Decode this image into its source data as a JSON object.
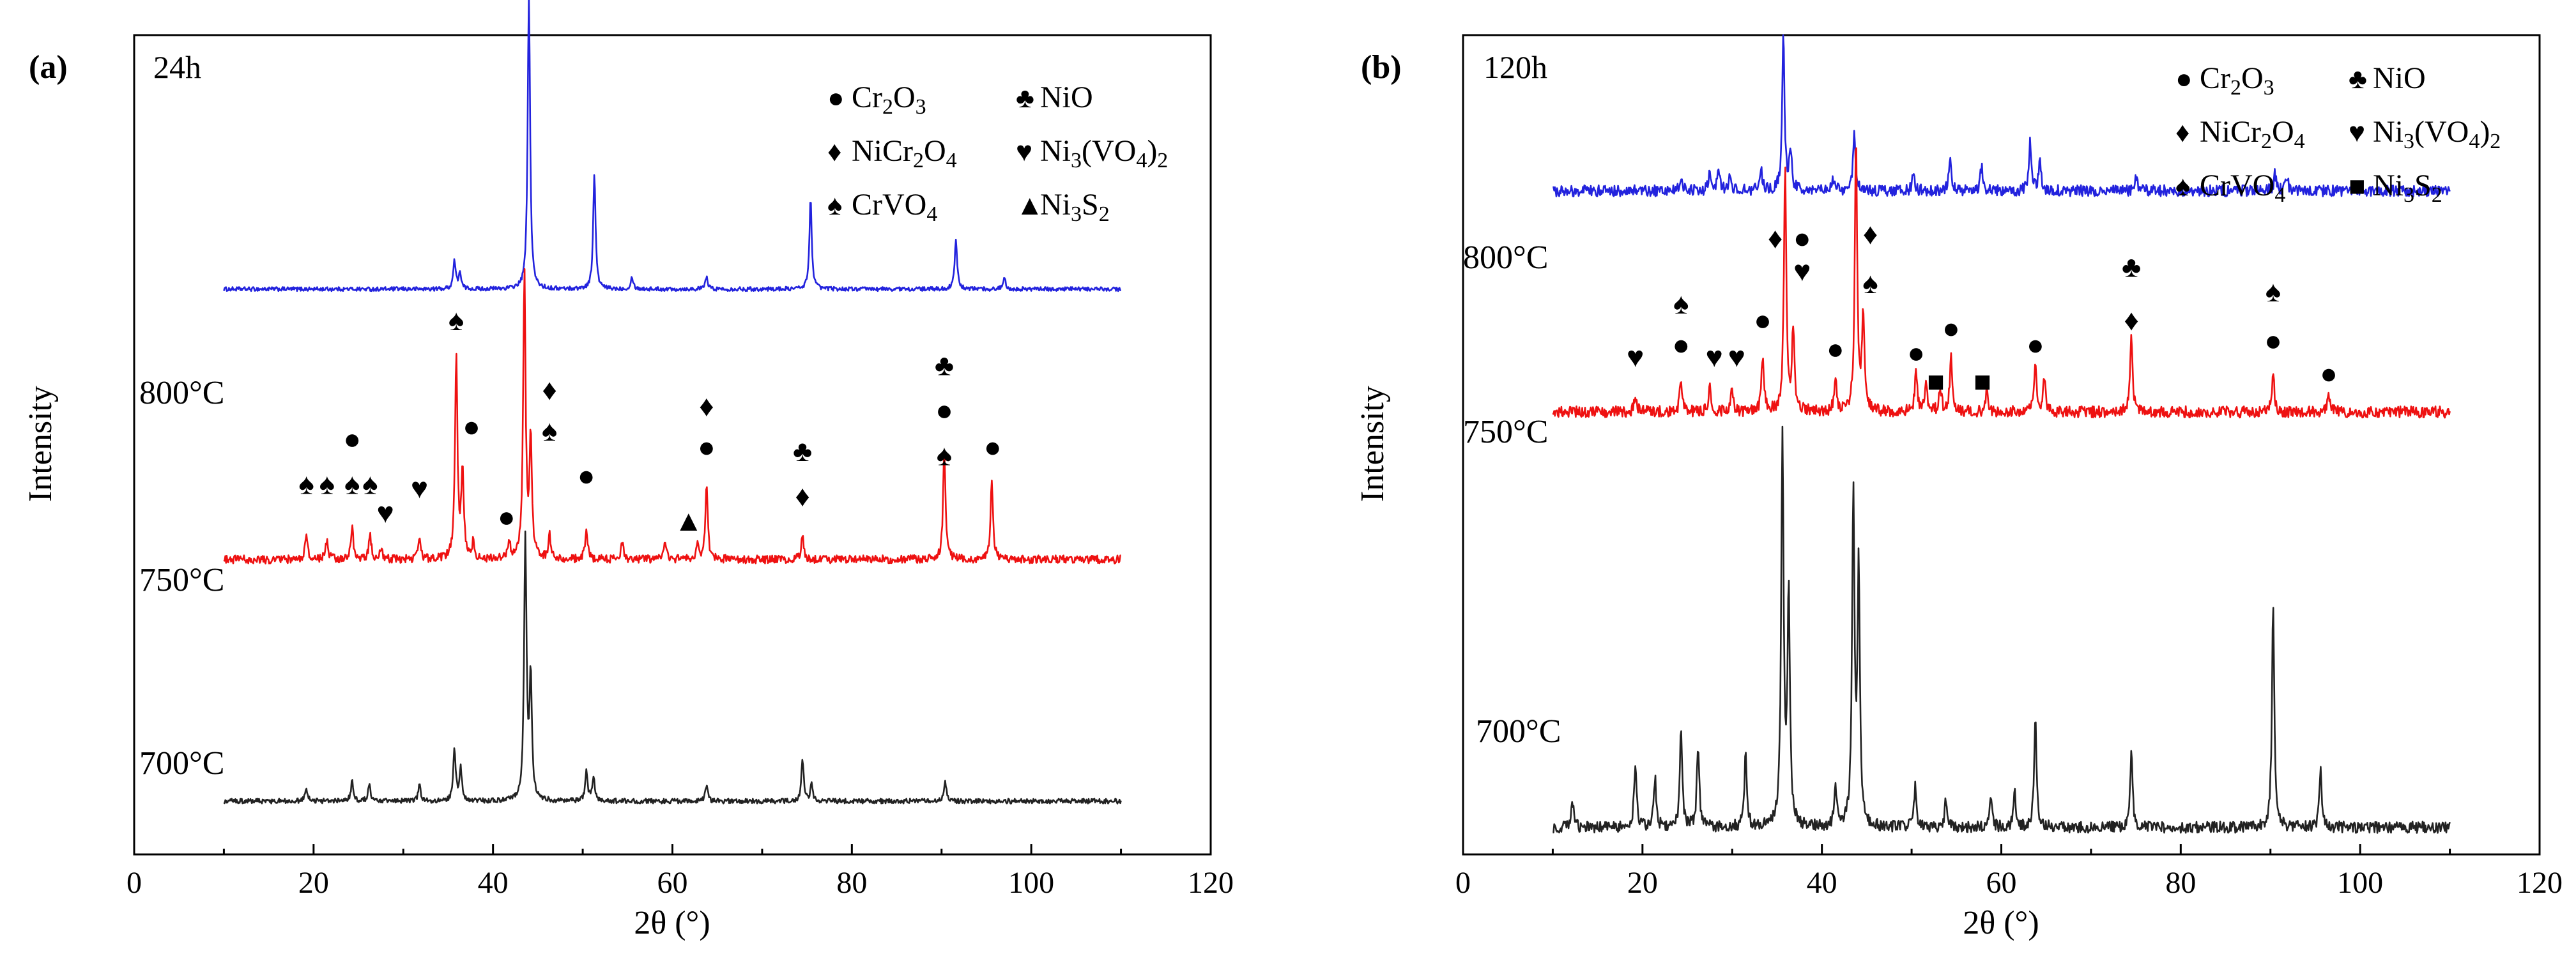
{
  "chart_data": [
    {
      "type": "line",
      "panel_label": "(a)",
      "title": "24h",
      "xlabel": "2θ (°)",
      "ylabel": "Intensity",
      "xlim": [
        0,
        120
      ],
      "xticks": [
        0,
        20,
        40,
        60,
        80,
        100,
        120
      ],
      "ylim": [
        0,
        100
      ],
      "legend_position": "top-right",
      "legend": [
        {
          "symbol": "●",
          "parts": [
            [
              "Cr",
              ""
            ],
            [
              "2",
              "sub"
            ],
            [
              "O",
              ""
            ],
            [
              "3",
              "sub"
            ]
          ]
        },
        {
          "symbol": "♣",
          "parts": [
            [
              "NiO",
              ""
            ]
          ]
        },
        {
          "symbol": "♦",
          "parts": [
            [
              "NiCr",
              ""
            ],
            [
              "2",
              "sub"
            ],
            [
              "O",
              ""
            ],
            [
              "4",
              "sub"
            ]
          ]
        },
        {
          "symbol": "♥",
          "parts": [
            [
              "Ni",
              ""
            ],
            [
              "3",
              "sub"
            ],
            [
              "(VO",
              ""
            ],
            [
              "4",
              "sub"
            ],
            [
              ")",
              ""
            ],
            [
              "2",
              "sub"
            ]
          ]
        },
        {
          "symbol": "♠",
          "parts": [
            [
              "CrVO",
              ""
            ],
            [
              "4",
              "sub"
            ]
          ]
        },
        {
          "symbol": "▲",
          "parts": [
            [
              "Ni",
              ""
            ],
            [
              "3",
              "sub"
            ],
            [
              "S",
              ""
            ],
            [
              "2",
              "sub"
            ]
          ]
        }
      ],
      "series": [
        {
          "name": "800°C",
          "color": "#2222dd",
          "baseline": 69,
          "noise": 0.25,
          "peaks": [
            [
              35.7,
              3.5
            ],
            [
              36.3,
              2
            ],
            [
              44,
              36
            ],
            [
              51.3,
              14
            ],
            [
              55.5,
              1.5
            ],
            [
              63.8,
              1.5
            ],
            [
              75.4,
              11
            ],
            [
              91.6,
              6
            ],
            [
              97,
              1.5
            ]
          ]
        },
        {
          "name": "750°C",
          "color": "#ee1111",
          "baseline": 36,
          "noise": 0.5,
          "peaks": [
            [
              19.2,
              3
            ],
            [
              21.5,
              2.5
            ],
            [
              24.3,
              4
            ],
            [
              26.3,
              3
            ],
            [
              27.5,
              1.5
            ],
            [
              31.8,
              2.5
            ],
            [
              35.9,
              25
            ],
            [
              36.6,
              11
            ],
            [
              37.8,
              2
            ],
            [
              41.8,
              2
            ],
            [
              43.5,
              35
            ],
            [
              44.2,
              15
            ],
            [
              46.3,
              3
            ],
            [
              50.4,
              4
            ],
            [
              54.4,
              2
            ],
            [
              59.2,
              2
            ],
            [
              62.8,
              2
            ],
            [
              63.8,
              9
            ],
            [
              74.5,
              3
            ],
            [
              90.3,
              13
            ],
            [
              95.6,
              10
            ]
          ]
        },
        {
          "name": "700°C",
          "color": "#222222",
          "baseline": 6.5,
          "noise": 0.3,
          "peaks": [
            [
              19.2,
              1.5
            ],
            [
              24.3,
              2.5
            ],
            [
              26.2,
              2
            ],
            [
              31.8,
              2
            ],
            [
              35.7,
              6.5
            ],
            [
              36.4,
              4
            ],
            [
              43.6,
              32
            ],
            [
              44.2,
              15
            ],
            [
              50.4,
              3.5
            ],
            [
              51.2,
              3
            ],
            [
              63.8,
              2
            ],
            [
              74.5,
              5
            ],
            [
              75.5,
              2
            ],
            [
              90.4,
              2.5
            ]
          ]
        }
      ],
      "phase_marks": [
        {
          "x": 19.2,
          "y": 44,
          "s": "♠"
        },
        {
          "x": 21.5,
          "y": 44,
          "s": "♠"
        },
        {
          "x": 24.3,
          "y": 44,
          "s": "♠"
        },
        {
          "x": 26.3,
          "y": 44,
          "s": "♠"
        },
        {
          "x": 24.3,
          "y": 49.5,
          "s": "●"
        },
        {
          "x": 28,
          "y": 40.5,
          "s": "♥"
        },
        {
          "x": 31.8,
          "y": 43.5,
          "s": "♥"
        },
        {
          "x": 35.9,
          "y": 64,
          "s": "♠"
        },
        {
          "x": 37.6,
          "y": 51,
          "s": "●"
        },
        {
          "x": 41.5,
          "y": 40,
          "s": "●"
        },
        {
          "x": 46.3,
          "y": 50.5,
          "s": "♠"
        },
        {
          "x": 46.3,
          "y": 55.5,
          "s": "♦"
        },
        {
          "x": 50.4,
          "y": 45,
          "s": "●"
        },
        {
          "x": 61.8,
          "y": 39.5,
          "s": "▲"
        },
        {
          "x": 63.8,
          "y": 48.5,
          "s": "●"
        },
        {
          "x": 63.8,
          "y": 53.5,
          "s": "♦"
        },
        {
          "x": 74.5,
          "y": 42.5,
          "s": "♦"
        },
        {
          "x": 74.5,
          "y": 48,
          "s": "♣"
        },
        {
          "x": 90.3,
          "y": 47.5,
          "s": "♠"
        },
        {
          "x": 90.3,
          "y": 53,
          "s": "●"
        },
        {
          "x": 90.3,
          "y": 58.5,
          "s": "♣"
        },
        {
          "x": 95.7,
          "y": 48.5,
          "s": "●"
        }
      ]
    },
    {
      "type": "line",
      "panel_label": "(b)",
      "title": "120h",
      "xlabel": "2θ (°)",
      "ylabel": "Intensity",
      "xlim": [
        0,
        120
      ],
      "xticks": [
        0,
        20,
        40,
        60,
        80,
        100,
        120
      ],
      "ylim": [
        0,
        100
      ],
      "legend_position": "top-right",
      "legend": [
        {
          "symbol": "●",
          "parts": [
            [
              "Cr",
              ""
            ],
            [
              "2",
              "sub"
            ],
            [
              "O",
              ""
            ],
            [
              "3",
              "sub"
            ]
          ]
        },
        {
          "symbol": "♣",
          "parts": [
            [
              "NiO",
              ""
            ]
          ]
        },
        {
          "symbol": "♦",
          "parts": [
            [
              "NiCr",
              ""
            ],
            [
              "2",
              "sub"
            ],
            [
              "O",
              ""
            ],
            [
              "4",
              "sub"
            ]
          ]
        },
        {
          "symbol": "♥",
          "parts": [
            [
              "Ni",
              ""
            ],
            [
              "3",
              "sub"
            ],
            [
              "(VO",
              ""
            ],
            [
              "4",
              "sub"
            ],
            [
              ")",
              ""
            ],
            [
              "2",
              "sub"
            ]
          ]
        },
        {
          "symbol": "♠",
          "parts": [
            [
              "CrVO",
              ""
            ],
            [
              "4",
              "sub"
            ]
          ]
        },
        {
          "symbol": "■",
          "parts": [
            [
              "Ni",
              ""
            ],
            [
              "3",
              "sub"
            ],
            [
              "S",
              ""
            ],
            [
              "2",
              "sub"
            ]
          ]
        }
      ],
      "series": [
        {
          "name": "800°C",
          "color": "#2222dd",
          "baseline": 81,
          "noise": 0.7,
          "peaks": [
            [
              24.3,
              1.5
            ],
            [
              27.5,
              2
            ],
            [
              28.5,
              2.5
            ],
            [
              29.8,
              2
            ],
            [
              33.2,
              3
            ],
            [
              35.7,
              19
            ],
            [
              36.5,
              5
            ],
            [
              41.3,
              1.5
            ],
            [
              43.6,
              7
            ],
            [
              50.2,
              2
            ],
            [
              54.3,
              4
            ],
            [
              57.8,
              3
            ],
            [
              63.2,
              6
            ],
            [
              64.3,
              4
            ],
            [
              75,
              2
            ],
            [
              90.5,
              2
            ],
            [
              91.8,
              2
            ]
          ]
        },
        {
          "name": "750°C",
          "color": "#ee1111",
          "baseline": 54,
          "noise": 0.7,
          "peaks": [
            [
              19.2,
              2
            ],
            [
              24.3,
              4
            ],
            [
              27.5,
              3
            ],
            [
              30,
              3
            ],
            [
              33.4,
              7
            ],
            [
              35.9,
              30
            ],
            [
              36.8,
              10
            ],
            [
              41.5,
              4
            ],
            [
              43.8,
              33
            ],
            [
              44.6,
              12
            ],
            [
              50.5,
              5
            ],
            [
              51.6,
              4
            ],
            [
              53.2,
              3
            ],
            [
              54.4,
              7
            ],
            [
              58.4,
              2.5
            ],
            [
              63.8,
              6
            ],
            [
              64.8,
              4
            ],
            [
              74.5,
              9
            ],
            [
              90.3,
              5
            ],
            [
              96.5,
              2
            ]
          ]
        },
        {
          "name": "700°C",
          "color": "#222222",
          "baseline": 3.3,
          "noise": 0.7,
          "peaks": [
            [
              12.2,
              3
            ],
            [
              19.2,
              8
            ],
            [
              21.4,
              6
            ],
            [
              24.3,
              12
            ],
            [
              26.2,
              10
            ],
            [
              31.5,
              9
            ],
            [
              35.6,
              48
            ],
            [
              36.3,
              28
            ],
            [
              41.5,
              5
            ],
            [
              43.5,
              40
            ],
            [
              44.1,
              31
            ],
            [
              50.4,
              5
            ],
            [
              53.8,
              3
            ],
            [
              58.8,
              4
            ],
            [
              61.5,
              4
            ],
            [
              63.8,
              13
            ],
            [
              74.5,
              9
            ],
            [
              90.3,
              27
            ],
            [
              95.6,
              7
            ]
          ]
        }
      ],
      "phase_marks": [
        {
          "x": 19.2,
          "y": 59.5,
          "s": "♥"
        },
        {
          "x": 24.3,
          "y": 61,
          "s": "●"
        },
        {
          "x": 24.3,
          "y": 66,
          "s": "♠"
        },
        {
          "x": 28,
          "y": 59.5,
          "s": "♥"
        },
        {
          "x": 30.5,
          "y": 59.5,
          "s": "♥"
        },
        {
          "x": 33.4,
          "y": 64,
          "s": "●"
        },
        {
          "x": 34.8,
          "y": 74,
          "s": "♦"
        },
        {
          "x": 37.8,
          "y": 70,
          "s": "♥"
        },
        {
          "x": 37.8,
          "y": 74,
          "s": "●"
        },
        {
          "x": 41.5,
          "y": 60.5,
          "s": "●"
        },
        {
          "x": 45.4,
          "y": 74.5,
          "s": "♦"
        },
        {
          "x": 45.4,
          "y": 68.5,
          "s": "♠"
        },
        {
          "x": 50.5,
          "y": 60,
          "s": "●"
        },
        {
          "x": 52.7,
          "y": 56.5,
          "s": "■"
        },
        {
          "x": 54.4,
          "y": 63,
          "s": "●"
        },
        {
          "x": 57.9,
          "y": 56.5,
          "s": "■"
        },
        {
          "x": 63.8,
          "y": 61,
          "s": "●"
        },
        {
          "x": 74.5,
          "y": 64,
          "s": "♦"
        },
        {
          "x": 74.5,
          "y": 70.5,
          "s": "♣"
        },
        {
          "x": 90.3,
          "y": 61.5,
          "s": "●"
        },
        {
          "x": 90.3,
          "y": 67.5,
          "s": "♠"
        },
        {
          "x": 96.5,
          "y": 57.5,
          "s": "●"
        }
      ]
    }
  ]
}
